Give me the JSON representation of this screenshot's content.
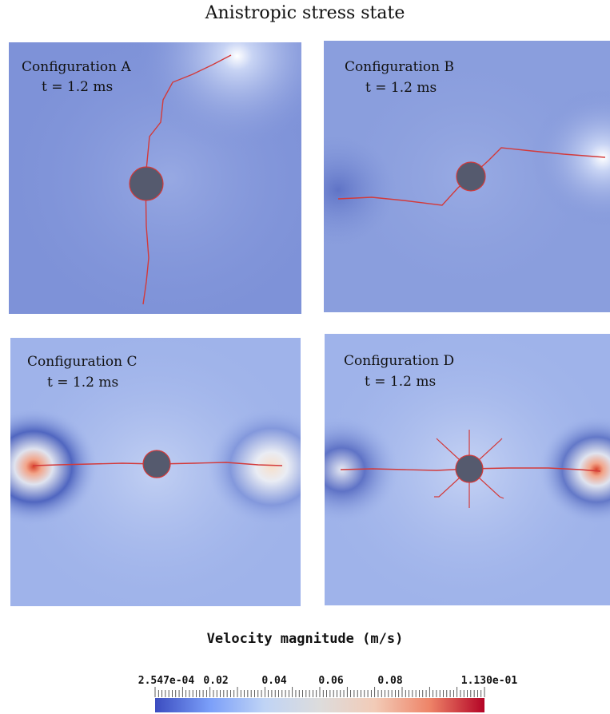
{
  "title": "Anistropic stress state",
  "panels": [
    {
      "label": "Configuration A",
      "time": "t = 1.2 ms"
    },
    {
      "label": "Configuration B",
      "time": "t = 1.2 ms"
    },
    {
      "label": "Configuration C",
      "time": "t = 1.2 ms"
    },
    {
      "label": "Configuration D",
      "time": "t = 1.2 ms"
    }
  ],
  "legend": {
    "title": "Velocity magnitude (m/s)",
    "min_label": "2.547e-04",
    "ticks": [
      "0.02",
      "0.04",
      "0.06",
      "0.08"
    ],
    "max_label": "1.130e-01",
    "colormap": [
      "#3b4cc0",
      "#7b9ff9",
      "#c0d4f5",
      "#dddcdc",
      "#f2cbb7",
      "#ee8468",
      "#b40426"
    ]
  },
  "colors": {
    "field": "#7e92d8",
    "crack": "#d33a3a",
    "hole": "#555a6e",
    "hot": "#d9442b"
  }
}
